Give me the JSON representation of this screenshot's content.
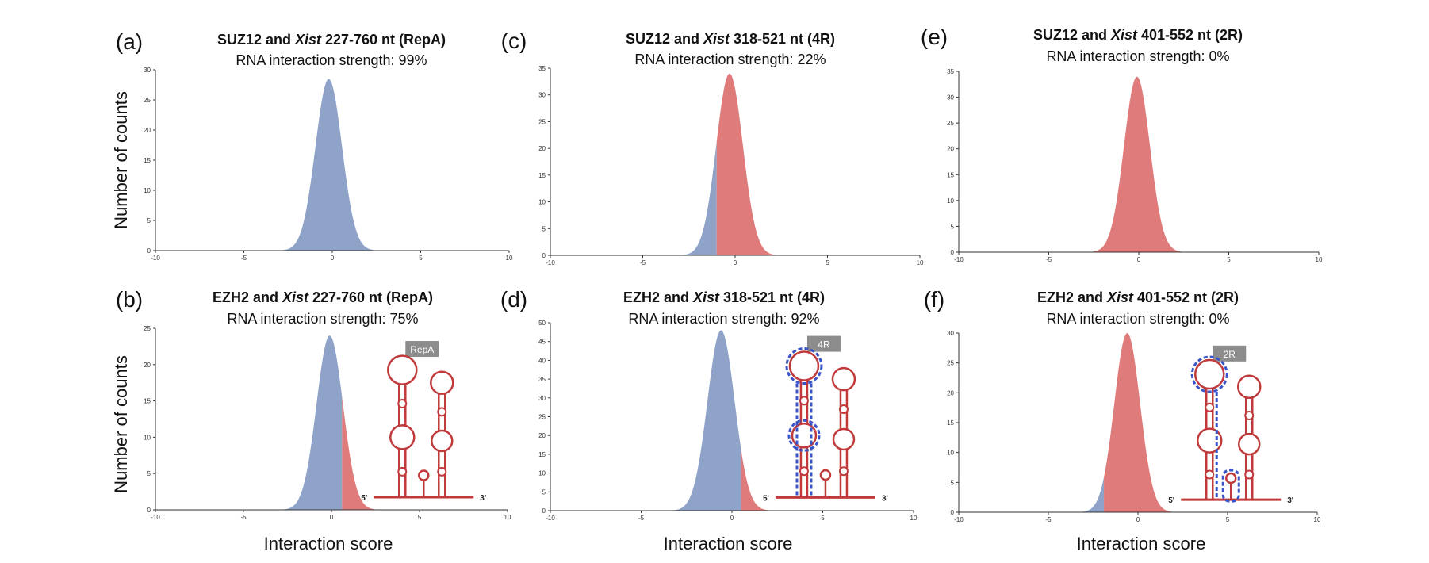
{
  "figure": {
    "ylabel": "Number of counts",
    "xlabel": "Interaction score"
  },
  "colors": {
    "blue": "#8fa3c9",
    "red": "#e07b7b",
    "structure": "#c0393b",
    "highlight": "#3a55c8",
    "label_box": "#8c8c8c"
  },
  "chart_data": [
    {
      "id": "a",
      "letter": "(a)",
      "type": "area",
      "title_protein": "SUZ12 and ",
      "title_gene": "Xist",
      "title_rest": " 227-760 nt (RepA)",
      "subtitle": "RNA interaction strength: 99%",
      "xlim": [
        -10,
        10
      ],
      "ylim": [
        0,
        30
      ],
      "xticks": [
        -10,
        -5,
        0,
        5,
        10
      ],
      "yticks": [
        0,
        5,
        10,
        15,
        20,
        25,
        30
      ],
      "distribution": {
        "peak_x": -0.2,
        "peak_y": 28.5,
        "sigma": 0.75
      },
      "split_x": 10,
      "structure": null
    },
    {
      "id": "b",
      "letter": "(b)",
      "type": "area",
      "title_protein": "EZH2 and ",
      "title_gene": "Xist",
      "title_rest": " 227-760 nt (RepA)",
      "subtitle": "RNA interaction strength: 75%",
      "xlim": [
        -10,
        10
      ],
      "ylim": [
        0,
        25
      ],
      "xticks": [
        -10,
        -5,
        0,
        5,
        10
      ],
      "yticks": [
        0,
        5,
        10,
        15,
        20,
        25
      ],
      "distribution": {
        "peak_x": -0.1,
        "peak_y": 24,
        "sigma": 0.75
      },
      "split_x": 0.6,
      "structure": {
        "label": "RepA",
        "highlight": []
      }
    },
    {
      "id": "c",
      "letter": "(c)",
      "type": "area",
      "title_protein": "SUZ12 and ",
      "title_gene": "Xist",
      "title_rest": " 318-521 nt (4R)",
      "subtitle": "RNA interaction strength: 22%",
      "xlim": [
        -10,
        10
      ],
      "ylim": [
        0,
        35
      ],
      "xticks": [
        -10,
        -5,
        0,
        5,
        10
      ],
      "yticks": [
        0,
        5,
        10,
        15,
        20,
        25,
        30,
        35
      ],
      "distribution": {
        "peak_x": -0.3,
        "peak_y": 34,
        "sigma": 0.72
      },
      "split_x": -1.0,
      "structure": null
    },
    {
      "id": "d",
      "letter": "(d)",
      "type": "area",
      "title_protein": "EZH2 and ",
      "title_gene": "Xist",
      "title_rest": " 318-521 nt (4R)",
      "subtitle": "RNA interaction strength: 92%",
      "xlim": [
        -10,
        10
      ],
      "ylim": [
        0,
        50
      ],
      "xticks": [
        -10,
        -5,
        0,
        5,
        10
      ],
      "yticks": [
        0,
        5,
        10,
        15,
        20,
        25,
        30,
        35,
        40,
        45,
        50
      ],
      "distribution": {
        "peak_x": -0.6,
        "peak_y": 48,
        "sigma": 0.75
      },
      "split_x": 0.5,
      "structure": {
        "label": "4R",
        "highlight": [
          "left-top",
          "left-bottom",
          "left-stem"
        ]
      }
    },
    {
      "id": "e",
      "letter": "(e)",
      "type": "area",
      "title_protein": "SUZ12 and ",
      "title_gene": "Xist",
      "title_rest": " 401-552 nt (2R)",
      "subtitle": "RNA interaction strength: 0%",
      "xlim": [
        -10,
        10
      ],
      "ylim": [
        0,
        35
      ],
      "xticks": [
        -10,
        -5,
        0,
        5,
        10
      ],
      "yticks": [
        0,
        5,
        10,
        15,
        20,
        25,
        30,
        35
      ],
      "distribution": {
        "peak_x": -0.1,
        "peak_y": 34,
        "sigma": 0.72
      },
      "split_x": -10,
      "structure": null
    },
    {
      "id": "f",
      "letter": "(f)",
      "type": "area",
      "title_protein": "EZH2 and ",
      "title_gene": "Xist",
      "title_rest": " 401-552 nt (2R)",
      "subtitle": "RNA interaction strength: 0%",
      "xlim": [
        -10,
        10
      ],
      "ylim": [
        0,
        30
      ],
      "xticks": [
        -10,
        -5,
        0,
        5,
        10
      ],
      "yticks": [
        0,
        5,
        10,
        15,
        20,
        25,
        30
      ],
      "distribution": {
        "peak_x": -0.6,
        "peak_y": 30,
        "sigma": 0.72
      },
      "split_x": -1.9,
      "structure": {
        "label": "2R",
        "highlight": [
          "left-top",
          "small-loop"
        ]
      }
    }
  ]
}
